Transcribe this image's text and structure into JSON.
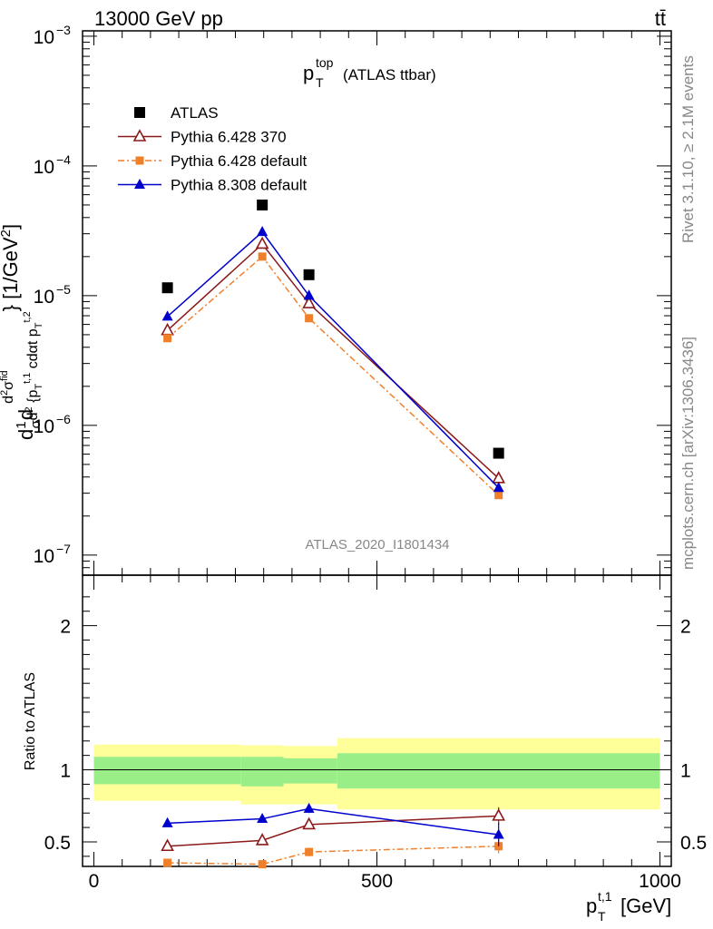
{
  "header": {
    "energy_label": "13000 GeV pp",
    "process_label": "tt̄"
  },
  "plot_title": {
    "main": "p",
    "sub": "T",
    "sup": "top",
    "note": "(ATLAS ttbar)"
  },
  "side_text": {
    "rivet": "Rivet 3.1.10, ≥ 2.1M events",
    "source": "mcplots.cern.ch [arXiv:1306.3436]"
  },
  "analysis_label": "ATLAS_2020_I1801434",
  "chart_data": [
    {
      "type": "scatter",
      "role": "main",
      "y_scale": "log",
      "ylim": [
        7e-08,
        0.0011
      ],
      "xlim": [
        -20,
        1020
      ],
      "ytick_labels": [
        {
          "value": 1e-07,
          "base": "10",
          "exp": "−7"
        },
        {
          "value": 1e-06,
          "base": "10",
          "exp": "−6"
        },
        {
          "value": 1e-05,
          "base": "10",
          "exp": "−5"
        },
        {
          "value": 0.0001,
          "base": "10",
          "exp": "−4"
        },
        {
          "value": 0.001,
          "base": "10",
          "exp": "−3"
        }
      ],
      "ylabel": "d(1/σ)dσ^fid / d²{p_T^t,1 cdot p_T^t,2} [1/GeV²]",
      "x": [
        130,
        297.5,
        380,
        715
      ],
      "series": [
        {
          "name": "ATLAS",
          "color": "#000000",
          "marker": "square",
          "line": "none",
          "values": [
            1.15e-05,
            5e-05,
            1.45e-05,
            6.1e-07
          ]
        },
        {
          "name": "Pythia 6.428 370",
          "color": "#8b1a1a",
          "marker": "open-triangle",
          "line": "solid",
          "values": [
            5.4e-06,
            2.5e-05,
            8.7e-06,
            3.9e-07
          ]
        },
        {
          "name": "Pythia 6.428 default",
          "color": "#f07f2a",
          "marker": "small-square",
          "line": "dashdot",
          "values": [
            4.7e-06,
            2e-05,
            6.7e-06,
            2.9e-07
          ]
        },
        {
          "name": "Pythia 8.308 default",
          "color": "#0000cc",
          "marker": "triangle",
          "line": "solid",
          "values": [
            6.9e-06,
            3.1e-05,
            1e-05,
            3.3e-07
          ]
        }
      ]
    },
    {
      "type": "line",
      "role": "ratio",
      "ylabel": "Ratio to ATLAS",
      "xlabel": "p_T^t,1 [GeV]",
      "xlabel_parts": {
        "base": "p",
        "sub": "T",
        "sup": "t,1",
        "unit": "[GeV]"
      },
      "ylim": [
        0.33,
        2.35
      ],
      "xlim": [
        -20,
        1020
      ],
      "xtick_labels": [
        "0",
        "500",
        "1000"
      ],
      "ytick_labels": [
        "0.5",
        "1",
        "2"
      ],
      "bands": [
        {
          "x0": 0,
          "x1": 260,
          "yellow": [
            0.785,
            1.175
          ],
          "green": [
            0.9,
            1.09
          ]
        },
        {
          "x0": 260,
          "x1": 335,
          "yellow": [
            0.76,
            1.17
          ],
          "green": [
            0.885,
            1.09
          ]
        },
        {
          "x0": 335,
          "x1": 430,
          "yellow": [
            0.76,
            1.165
          ],
          "green": [
            0.905,
            1.08
          ]
        },
        {
          "x0": 430,
          "x1": 1000,
          "yellow": [
            0.725,
            1.22
          ],
          "green": [
            0.87,
            1.115
          ]
        }
      ],
      "x": [
        130,
        297.5,
        380,
        715
      ],
      "series": [
        {
          "name": "Pythia 6.428 370",
          "color": "#8b1a1a",
          "marker": "open-triangle",
          "line": "solid",
          "values": [
            0.47,
            0.51,
            0.62,
            0.68
          ],
          "err": [
            0.018,
            0.015,
            0.025,
            0.06
          ]
        },
        {
          "name": "Pythia 6.428 default",
          "color": "#f07f2a",
          "marker": "small-square",
          "line": "dashdot",
          "values": [
            0.355,
            0.345,
            0.43,
            0.47
          ],
          "err": [
            0.015,
            0.012,
            0.03,
            0.05
          ]
        },
        {
          "name": "Pythia 8.308 default",
          "color": "#0000cc",
          "marker": "triangle",
          "line": "solid",
          "values": [
            0.63,
            0.66,
            0.73,
            0.55
          ],
          "err": [
            0.022,
            0.018,
            0.03,
            0.08
          ]
        }
      ]
    }
  ]
}
